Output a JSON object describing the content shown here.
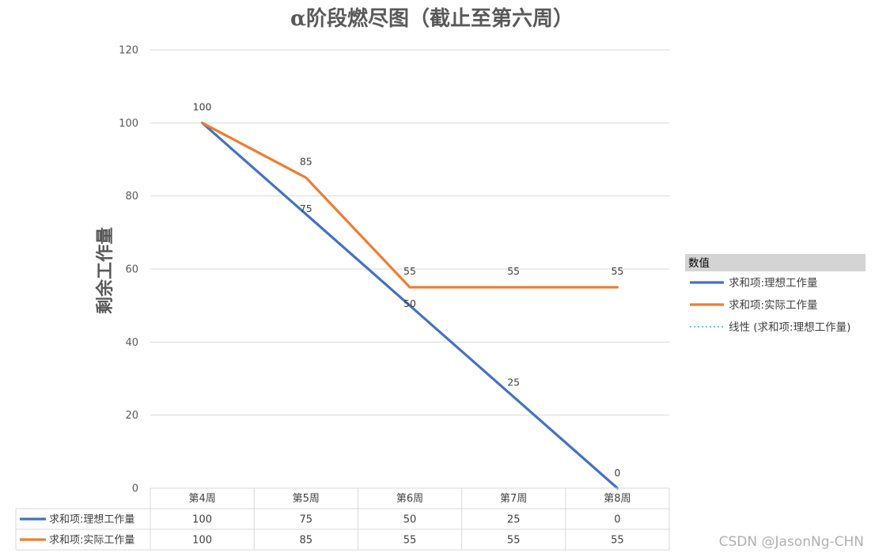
{
  "chart_data": {
    "type": "line",
    "title": "α阶段燃尽图（截止至第六周）",
    "ylabel": "剩余工作量",
    "xlabel": "",
    "categories": [
      "第4周",
      "第5周",
      "第6周",
      "第7周",
      "第8周"
    ],
    "ylim": [
      0,
      120
    ],
    "yticks": [
      0,
      20,
      40,
      60,
      80,
      100,
      120
    ],
    "grid": true,
    "legend_position": "right",
    "legend_title": "数值",
    "series": [
      {
        "name": "求和项:理想工作量",
        "values": [
          100,
          75,
          50,
          25,
          0
        ],
        "color": "#4472c4"
      },
      {
        "name": "求和项:实际工作量",
        "values": [
          100,
          85,
          55,
          55,
          55
        ],
        "color": "#ed7d31"
      }
    ],
    "trendline": {
      "name": "线性 (求和项:理想工作量)",
      "color": "#4bacc6",
      "style": "dotted"
    },
    "data_table": true
  },
  "watermark": "CSDN @JasonNg-CHN"
}
